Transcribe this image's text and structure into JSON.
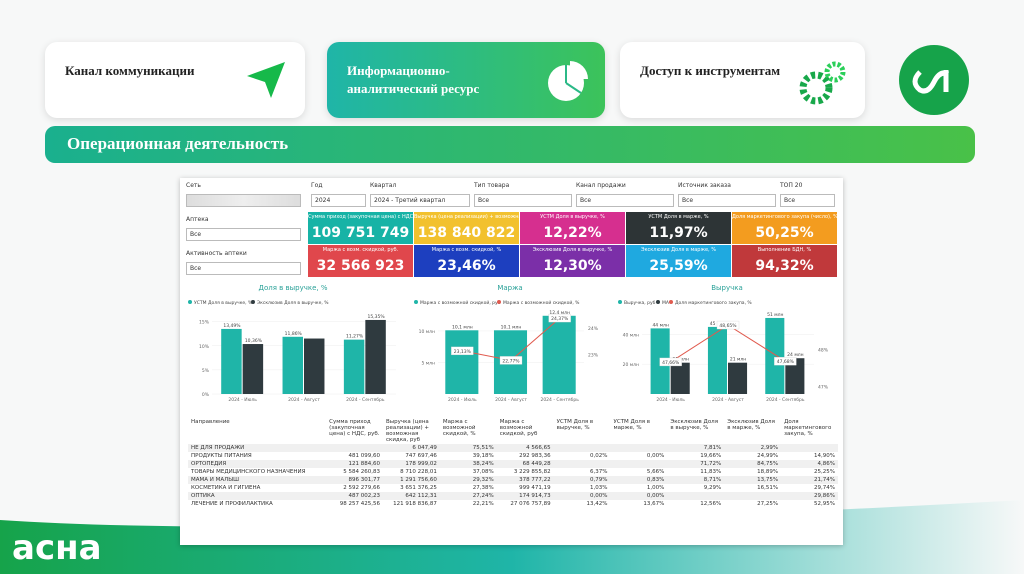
{
  "header": {
    "cards": [
      "Канал коммуникации",
      "Информационно-аналитический ресурс",
      "Доступ к инструментам"
    ],
    "section_title": "Операционная деятельность",
    "logo": "асна"
  },
  "dashboard": {
    "filters": [
      {
        "label": "Сеть"
      },
      {
        "label": "Год",
        "value": "2024"
      },
      {
        "label": "Квартал",
        "value": "2024 - Третий квартал"
      },
      {
        "label": "Тип товара",
        "value": "Все"
      },
      {
        "label": "Канал продажи",
        "value": "Все"
      },
      {
        "label": "Источник заказа",
        "value": "Все"
      },
      {
        "label": "ТОП 20",
        "value": "Все"
      }
    ],
    "slicers": [
      {
        "label": "Аптека",
        "value": "Все"
      },
      {
        "label": "Активность аптеки",
        "value": "Все"
      }
    ],
    "kpis": [
      {
        "label": "Сумма приход (закупочная цена) с НДС, руб.",
        "value": "109 751 749",
        "color": "#17b3a6"
      },
      {
        "label": "Выручка (цена реализации) + возможная скидка, руб",
        "value": "138 840 822",
        "color": "#f2c12e"
      },
      {
        "label": "УСТМ Доля в выручке, %",
        "value": "12,22%",
        "color": "#d62f8f"
      },
      {
        "label": "УСТМ Доля в марже, %",
        "value": "11,97%",
        "color": "#2d3436"
      },
      {
        "label": "Доля маркетингового закупа (число), %",
        "value": "50,25%",
        "color": "#f39c1f"
      },
      {
        "label": "Маржа с возм. скидкой, руб.",
        "value": "32 566 923",
        "color": "#e0474c"
      },
      {
        "label": "Маржа с возм. скидкой, %",
        "value": "23,46%",
        "color": "#1d3fbf"
      },
      {
        "label": "Эксклюзив Доля в выручке, %",
        "value": "12,30%",
        "color": "#7b2fa8"
      },
      {
        "label": "Эксклюзив Доля в марже, %",
        "value": "25,59%",
        "color": "#1fa9e0"
      },
      {
        "label": "Выполнение БДН, %",
        "value": "94,32%",
        "color": "#c0393b"
      }
    ],
    "charts": [
      {
        "type": "bar",
        "title": "Доля в выручке, %",
        "categories": [
          "2024 - Июль",
          "2024 - Август",
          "2024 - Сентябрь"
        ],
        "ylim": [
          0,
          17
        ],
        "yticks": [
          {
            "value": 0,
            "label": "0%"
          },
          {
            "value": 5,
            "label": "5%"
          },
          {
            "value": 10,
            "label": "10%"
          },
          {
            "value": 15,
            "label": "15%"
          }
        ],
        "series": [
          {
            "name": "УСТМ Доля в выручке, %",
            "color": "#1fb5a8",
            "values": [
              13.49,
              11.86,
              11.27
            ],
            "value_labels": [
              "13,49%",
              "11,86%",
              "11,27%"
            ]
          },
          {
            "name": "Эксклюзив Доля в выручке, %",
            "color": "#2f3a3f",
            "values": [
              10.36,
              11.5,
              15.35
            ],
            "value_labels": [
              "10,36%",
              null,
              "15,35%"
            ]
          }
        ]
      },
      {
        "type": "combo",
        "title": "Маржа",
        "categories": [
          "2024 - Июль",
          "2024 - Август",
          "2024 - Сентябрь"
        ],
        "ylim": [
          0,
          13
        ],
        "yticks": [
          {
            "value": 5,
            "label": "5 млн"
          },
          {
            "value": 10,
            "label": "10 млн"
          }
        ],
        "y2lim": [
          21.5,
          24.6
        ],
        "y2ticks": [
          {
            "value": 23,
            "label": "23%"
          },
          {
            "value": 24,
            "label": "24%"
          }
        ],
        "series": [
          {
            "name": "Маржа с возможной скидкой, руб",
            "color": "#1fb5a8",
            "values": [
              10.1,
              10.1,
              12.4
            ],
            "value_labels": [
              "10,1 млн",
              "10,1 млн",
              "12,4 млн"
            ]
          },
          {
            "name": "Маржа с возможной скидкой, %",
            "color": "#e05a4e",
            "axis": "y2",
            "values": [
              23.13,
              22.77,
              24.37
            ],
            "value_labels": [
              "23,13%",
              "22,77%",
              "24,37%"
            ]
          }
        ]
      },
      {
        "type": "combo",
        "title": "Выручка",
        "categories": [
          "2024 - Июль",
          "2024 - Август",
          "2024 - Сентябрь"
        ],
        "ylim": [
          0,
          55
        ],
        "yticks": [
          {
            "value": 20,
            "label": "20 млн"
          },
          {
            "value": 40,
            "label": "40 млн"
          }
        ],
        "y2lim": [
          46.8,
          49
        ],
        "y2ticks": [
          {
            "value": 47,
            "label": "47%"
          },
          {
            "value": 48,
            "label": "48%"
          }
        ],
        "series": [
          {
            "name": "Выручка, руб",
            "color": "#1fb5a8",
            "values": [
              44,
              45,
              51
            ],
            "value_labels": [
              "44 млн",
              "45 млн",
              "51 млн"
            ]
          },
          {
            "name": "МА",
            "color": "#2f3a3f",
            "values": [
              21,
              21,
              24
            ],
            "value_labels": [
              "21 млн",
              "21 млн",
              "24 млн"
            ]
          },
          {
            "name": "Доля маркетингового закупа, %",
            "color": "#e05a4e",
            "axis": "y2",
            "values": [
              47.66,
              48.65,
              47.68
            ],
            "value_labels": [
              "47,66%",
              "48,65%",
              "47,68%"
            ]
          }
        ]
      }
    ],
    "table": {
      "columns": [
        "Направление",
        "Сумма приход (закупочная цена) с НДС, руб.",
        "Выручка (цена реализации) + возможная скидка, руб",
        "Маржа с возможной скидкой, %",
        "Маржа с возможной скидкой, руб",
        "УСТМ Доля в выручке, %",
        "УСТМ Доля в марже, %",
        "Эксклюзив Доля в выручке, %",
        "Эксклюзив Доля в марже, %",
        "Доля маркетингового закупа, %"
      ],
      "rows": [
        [
          "НЕ ДЛЯ ПРОДАЖИ",
          null,
          "6 047,49",
          "75,51%",
          "4 566,65",
          null,
          null,
          "7,81%",
          "2,99%",
          null
        ],
        [
          "ПРОДУКТЫ ПИТАНИЯ",
          "481 099,60",
          "747 697,46",
          "39,18%",
          "292 983,36",
          "0,02%",
          "0,00%",
          "19,66%",
          "24,99%",
          "14,90%"
        ],
        [
          "ОРТОПЕДИЯ",
          "121 884,60",
          "178 999,02",
          "38,24%",
          "68 449,28",
          null,
          null,
          "71,72%",
          "84,75%",
          "4,86%"
        ],
        [
          "ТОВАРЫ МЕДИЦИНСКОГО НАЗНАЧЕНИЯ",
          "5 584 260,83",
          "8 710 228,01",
          "37,08%",
          "3 229 855,82",
          "6,37%",
          "5,66%",
          "11,83%",
          "18,89%",
          "25,25%"
        ],
        [
          "МАМА И МАЛЫШ",
          "896 301,77",
          "1 291 756,60",
          "29,32%",
          "378 777,22",
          "0,79%",
          "0,83%",
          "8,71%",
          "13,75%",
          "21,74%"
        ],
        [
          "КОСМЕТИКА И ГИГИЕНА",
          "2 592 279,66",
          "3 651 376,25",
          "27,38%",
          "999 471,19",
          "1,03%",
          "1,00%",
          "9,29%",
          "16,51%",
          "29,74%"
        ],
        [
          "ОПТИКА",
          "487 002,23",
          "642 112,31",
          "27,24%",
          "174 914,73",
          "0,00%",
          "0,00%",
          null,
          null,
          "29,86%"
        ],
        [
          "ЛЕЧЕНИЕ И ПРОФИЛАКТИКА",
          "98 257 425,56",
          "121 918 836,87",
          "22,21%",
          "27 076 757,89",
          "13,42%",
          "13,67%",
          "12,56%",
          "27,25%",
          "52,95%"
        ]
      ]
    }
  }
}
